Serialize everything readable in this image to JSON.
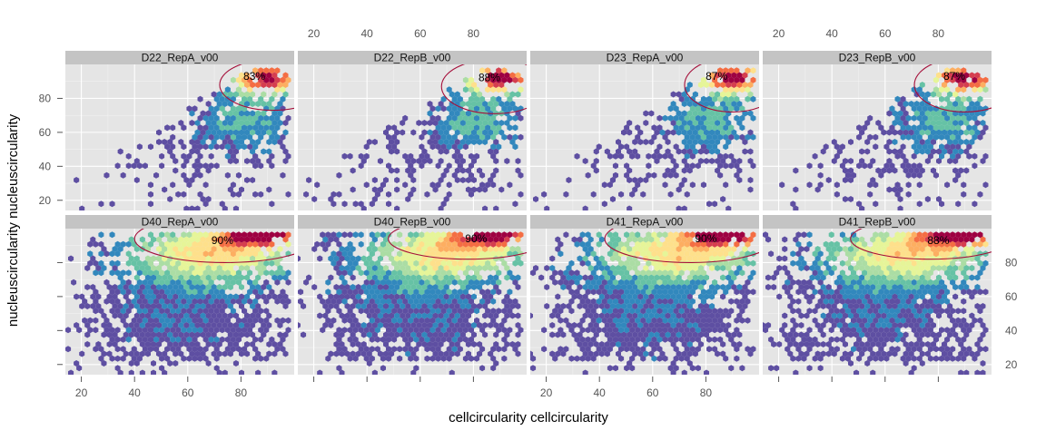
{
  "chart_data": {
    "type": "hexbin",
    "xlabel": "cellcircularity cellcircularity",
    "ylabel": "nucleuscircularity nucleuscircularity",
    "x_ticks": [
      20,
      40,
      60,
      80
    ],
    "y_ticks": [
      20,
      40,
      60,
      80
    ],
    "xlim": [
      14,
      100
    ],
    "ylim": [
      14,
      100
    ],
    "bin_colors": [
      "#5e4fa2",
      "#3288bd",
      "#66c2a5",
      "#abdda4",
      "#e6f598",
      "#fee08b",
      "#fdae61",
      "#f46d43",
      "#d53e4f",
      "#9e0142"
    ],
    "ellipse_color": "#a50f3a",
    "panels": [
      {
        "label": "D22_RepA_v00",
        "percent": "83%",
        "row": 0,
        "col": 0,
        "label_x": 85,
        "label_y": 91,
        "ellipse": {
          "cx": 92,
          "cy": 88,
          "rx": 20,
          "ry": 15
        },
        "mode": "sparse",
        "seed": 11
      },
      {
        "label": "D22_RepB_v00",
        "percent": "88%",
        "row": 0,
        "col": 1,
        "label_x": 86,
        "label_y": 90,
        "ellipse": {
          "cx": 88,
          "cy": 87,
          "rx": 20,
          "ry": 16
        },
        "mode": "sparse",
        "seed": 23
      },
      {
        "label": "D23_RepA_v00",
        "percent": "87%",
        "row": 0,
        "col": 2,
        "label_x": 84,
        "label_y": 91,
        "ellipse": {
          "cx": 90,
          "cy": 88,
          "rx": 18,
          "ry": 16
        },
        "mode": "sparse",
        "seed": 37
      },
      {
        "label": "D23_RepB_v00",
        "percent": "87%",
        "row": 0,
        "col": 3,
        "label_x": 86,
        "label_y": 91,
        "ellipse": {
          "cx": 90,
          "cy": 88,
          "rx": 19,
          "ry": 16
        },
        "mode": "sparse",
        "seed": 41
      },
      {
        "label": "D40_RepA_v00",
        "percent": "90%",
        "row": 1,
        "col": 0,
        "label_x": 73,
        "label_y": 91,
        "ellipse": {
          "cx": 74,
          "cy": 94,
          "rx": 34,
          "ry": 14
        },
        "mode": "dense",
        "seed": 53
      },
      {
        "label": "D40_RepB_v00",
        "percent": "90%",
        "row": 1,
        "col": 1,
        "label_x": 81,
        "label_y": 92,
        "ellipse": {
          "cx": 78,
          "cy": 94,
          "rx": 30,
          "ry": 12
        },
        "mode": "dense",
        "seed": 61
      },
      {
        "label": "D41_RepA_v00",
        "percent": "90%",
        "row": 1,
        "col": 2,
        "label_x": 80,
        "label_y": 92,
        "ellipse": {
          "cx": 74,
          "cy": 94,
          "rx": 32,
          "ry": 14
        },
        "mode": "dense",
        "seed": 71
      },
      {
        "label": "D41_RepB_v00",
        "percent": "88%",
        "row": 1,
        "col": 3,
        "label_x": 80,
        "label_y": 91,
        "ellipse": {
          "cx": 77,
          "cy": 94,
          "rx": 30,
          "ry": 12
        },
        "mode": "dense",
        "seed": 83
      }
    ]
  }
}
